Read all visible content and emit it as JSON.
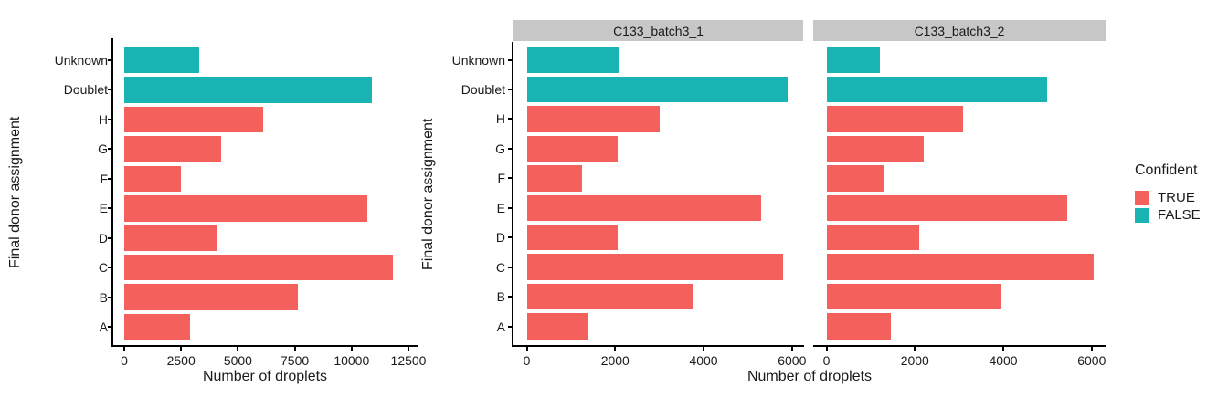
{
  "figure": {
    "xlabel": "Number of droplets",
    "ylabel": "Final donor assignment"
  },
  "colors": {
    "confident_true": "#F4615C",
    "confident_false": "#18B4B4",
    "strip_bg": "#C7C7C7",
    "axis_line": "#000000",
    "text": "#1A1A1A"
  },
  "legend": {
    "title": "Confident",
    "items": [
      {
        "label": "TRUE",
        "color": "#F4615C"
      },
      {
        "label": "FALSE",
        "color": "#18B4B4"
      }
    ]
  },
  "chart_data": [
    {
      "type": "bar",
      "orientation": "horizontal",
      "facet_label": null,
      "xlabel": "Number of droplets",
      "ylabel": "Final donor assignment",
      "categories": [
        "Unknown",
        "Doublet",
        "H",
        "G",
        "F",
        "E",
        "D",
        "C",
        "B",
        "A"
      ],
      "values": [
        3300,
        10900,
        6100,
        4250,
        2500,
        10700,
        4100,
        11800,
        7650,
        2900
      ],
      "confident": [
        false,
        false,
        true,
        true,
        true,
        true,
        true,
        true,
        true,
        true
      ],
      "xlim": [
        0,
        12500
      ],
      "xticks": [
        0,
        2500,
        5000,
        7500,
        10000,
        12500
      ],
      "grid": false,
      "legend_position": "right"
    },
    {
      "type": "bar",
      "orientation": "horizontal",
      "facet_label": "C133_batch3_1",
      "xlabel": "Number of droplets",
      "ylabel": "Final donor assignment",
      "categories": [
        "Unknown",
        "Doublet",
        "H",
        "G",
        "F",
        "E",
        "D",
        "C",
        "B",
        "A"
      ],
      "values": [
        2100,
        5900,
        3000,
        2050,
        1250,
        5300,
        2050,
        5800,
        3750,
        1400
      ],
      "confident": [
        false,
        false,
        true,
        true,
        true,
        true,
        true,
        true,
        true,
        true
      ],
      "xlim": [
        0,
        6000
      ],
      "xticks": [
        0,
        2000,
        4000,
        6000
      ],
      "grid": false,
      "legend_position": "right"
    },
    {
      "type": "bar",
      "orientation": "horizontal",
      "facet_label": "C133_batch3_2",
      "xlabel": "Number of droplets",
      "ylabel": "Final donor assignment",
      "categories": [
        "Unknown",
        "Doublet",
        "H",
        "G",
        "F",
        "E",
        "D",
        "C",
        "B",
        "A"
      ],
      "values": [
        1200,
        5000,
        3100,
        2200,
        1300,
        5450,
        2100,
        6050,
        3950,
        1450
      ],
      "confident": [
        false,
        false,
        true,
        true,
        true,
        true,
        true,
        true,
        true,
        true
      ],
      "xlim": [
        0,
        6000
      ],
      "xticks": [
        0,
        2000,
        4000,
        6000
      ],
      "grid": false,
      "legend_position": "right"
    }
  ]
}
